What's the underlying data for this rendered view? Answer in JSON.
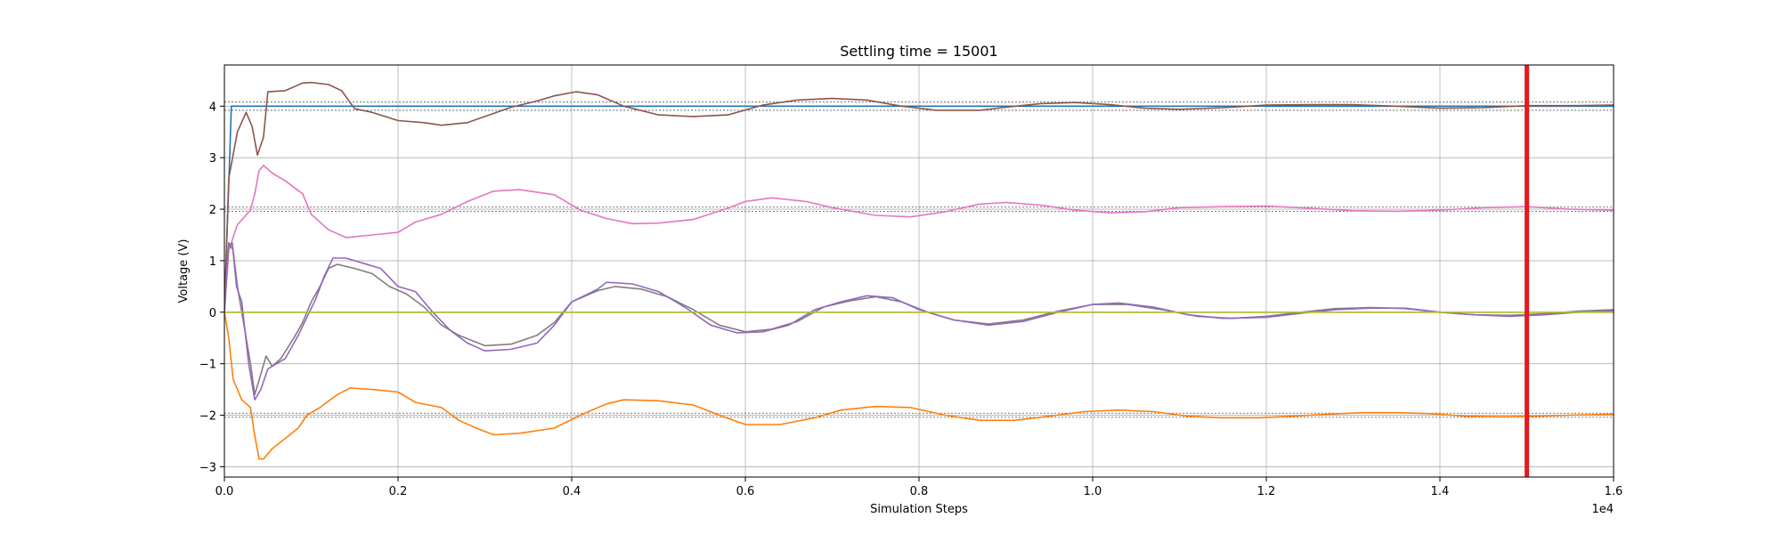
{
  "chart_data": {
    "type": "line",
    "title": "Settling time = 15001",
    "xlabel": "Simulation Steps",
    "ylabel": "Voltage (V)",
    "x_offset_label": "1e4",
    "xlim": [
      0,
      16000
    ],
    "ylim": [
      -3.2,
      4.8
    ],
    "grid": true,
    "x_ticks": [
      0,
      2000,
      4000,
      6000,
      8000,
      10000,
      12000,
      14000,
      16000
    ],
    "x_tick_labels": [
      "0.0",
      "0.2",
      "0.4",
      "0.6",
      "0.8",
      "1.0",
      "1.2",
      "1.4",
      "1.6"
    ],
    "y_ticks": [
      -3,
      -2,
      -1,
      0,
      1,
      2,
      3,
      4
    ],
    "y_tick_labels": [
      "−3",
      "−2",
      "−1",
      "0",
      "1",
      "2",
      "3",
      "4"
    ],
    "settling_marker": {
      "x": 15001,
      "color": "#e8191b"
    },
    "tolerance_bands": [
      {
        "low": 3.92,
        "high": 4.08
      },
      {
        "low": 1.96,
        "high": 2.04
      },
      {
        "low": -2.04,
        "high": -1.96
      }
    ],
    "series": [
      {
        "color": "#1f77b4",
        "points": [
          [
            0,
            0
          ],
          [
            30,
            1.5
          ],
          [
            60,
            3.0
          ],
          [
            80,
            4.0
          ],
          [
            16000,
            4.0
          ]
        ]
      },
      {
        "color": "#8c564b",
        "points": [
          [
            0,
            0
          ],
          [
            50,
            2.6
          ],
          [
            150,
            3.5
          ],
          [
            250,
            3.88
          ],
          [
            320,
            3.6
          ],
          [
            380,
            3.05
          ],
          [
            450,
            3.4
          ],
          [
            500,
            4.28
          ],
          [
            700,
            4.3
          ],
          [
            900,
            4.45
          ],
          [
            1000,
            4.46
          ],
          [
            1200,
            4.42
          ],
          [
            1350,
            4.3
          ],
          [
            1500,
            3.95
          ],
          [
            1700,
            3.88
          ],
          [
            2000,
            3.72
          ],
          [
            2300,
            3.68
          ],
          [
            2500,
            3.63
          ],
          [
            2800,
            3.68
          ],
          [
            3000,
            3.8
          ],
          [
            3300,
            3.98
          ],
          [
            3600,
            4.1
          ],
          [
            3800,
            4.2
          ],
          [
            4050,
            4.28
          ],
          [
            4300,
            4.22
          ],
          [
            4600,
            4.0
          ],
          [
            5000,
            3.83
          ],
          [
            5400,
            3.8
          ],
          [
            5800,
            3.83
          ],
          [
            6200,
            4.02
          ],
          [
            6600,
            4.12
          ],
          [
            7000,
            4.15
          ],
          [
            7400,
            4.12
          ],
          [
            7800,
            4.0
          ],
          [
            8200,
            3.92
          ],
          [
            8700,
            3.92
          ],
          [
            9000,
            3.98
          ],
          [
            9400,
            4.05
          ],
          [
            9800,
            4.07
          ],
          [
            10200,
            4.03
          ],
          [
            10600,
            3.96
          ],
          [
            11000,
            3.94
          ],
          [
            11500,
            3.97
          ],
          [
            12000,
            4.02
          ],
          [
            12500,
            4.03
          ],
          [
            13000,
            4.03
          ],
          [
            13500,
            4.0
          ],
          [
            14000,
            3.96
          ],
          [
            14500,
            3.97
          ],
          [
            15000,
            4.01
          ],
          [
            15500,
            4.01
          ],
          [
            16000,
            4.02
          ]
        ]
      },
      {
        "color": "#e377c2",
        "points": [
          [
            0,
            0
          ],
          [
            50,
            1.2
          ],
          [
            150,
            1.7
          ],
          [
            300,
            1.98
          ],
          [
            350,
            2.3
          ],
          [
            400,
            2.75
          ],
          [
            450,
            2.85
          ],
          [
            550,
            2.7
          ],
          [
            700,
            2.55
          ],
          [
            900,
            2.3
          ],
          [
            1000,
            1.9
          ],
          [
            1200,
            1.6
          ],
          [
            1400,
            1.45
          ],
          [
            1700,
            1.5
          ],
          [
            2000,
            1.55
          ],
          [
            2200,
            1.75
          ],
          [
            2500,
            1.9
          ],
          [
            2800,
            2.15
          ],
          [
            3100,
            2.35
          ],
          [
            3400,
            2.38
          ],
          [
            3800,
            2.28
          ],
          [
            4100,
            1.98
          ],
          [
            4400,
            1.82
          ],
          [
            4700,
            1.72
          ],
          [
            5000,
            1.73
          ],
          [
            5400,
            1.8
          ],
          [
            5800,
            2.02
          ],
          [
            6000,
            2.15
          ],
          [
            6300,
            2.22
          ],
          [
            6700,
            2.15
          ],
          [
            7000,
            2.03
          ],
          [
            7500,
            1.88
          ],
          [
            7900,
            1.85
          ],
          [
            8300,
            1.95
          ],
          [
            8700,
            2.1
          ],
          [
            9000,
            2.13
          ],
          [
            9400,
            2.08
          ],
          [
            9800,
            1.98
          ],
          [
            10200,
            1.93
          ],
          [
            10600,
            1.95
          ],
          [
            11000,
            2.03
          ],
          [
            11500,
            2.05
          ],
          [
            12000,
            2.06
          ],
          [
            12500,
            2.02
          ],
          [
            13000,
            1.97
          ],
          [
            13500,
            1.96
          ],
          [
            14000,
            1.98
          ],
          [
            14500,
            2.03
          ],
          [
            15000,
            2.05
          ],
          [
            15500,
            2.0
          ],
          [
            16000,
            1.98
          ]
        ]
      },
      {
        "color": "#7f7f7f",
        "points": [
          [
            0,
            0
          ],
          [
            50,
            1.35
          ],
          [
            100,
            1.2
          ],
          [
            150,
            0.5
          ],
          [
            200,
            0.0
          ],
          [
            300,
            -1.0
          ],
          [
            350,
            -1.6
          ],
          [
            420,
            -1.2
          ],
          [
            480,
            -0.85
          ],
          [
            550,
            -1.05
          ],
          [
            650,
            -0.9
          ],
          [
            800,
            -0.5
          ],
          [
            900,
            -0.2
          ],
          [
            1000,
            0.2
          ],
          [
            1100,
            0.5
          ],
          [
            1200,
            0.85
          ],
          [
            1300,
            0.93
          ],
          [
            1500,
            0.85
          ],
          [
            1700,
            0.75
          ],
          [
            1900,
            0.5
          ],
          [
            2100,
            0.35
          ],
          [
            2300,
            0.1
          ],
          [
            2500,
            -0.25
          ],
          [
            2700,
            -0.45
          ],
          [
            3000,
            -0.65
          ],
          [
            3300,
            -0.62
          ],
          [
            3600,
            -0.45
          ],
          [
            3800,
            -0.2
          ],
          [
            4000,
            0.2
          ],
          [
            4300,
            0.42
          ],
          [
            4500,
            0.5
          ],
          [
            4800,
            0.45
          ],
          [
            5100,
            0.3
          ],
          [
            5400,
            0.05
          ],
          [
            5700,
            -0.25
          ],
          [
            6000,
            -0.38
          ],
          [
            6300,
            -0.33
          ],
          [
            6600,
            -0.18
          ],
          [
            6900,
            0.1
          ],
          [
            7200,
            0.22
          ],
          [
            7500,
            0.3
          ],
          [
            7800,
            0.2
          ],
          [
            8100,
            0.0
          ],
          [
            8400,
            -0.15
          ],
          [
            8800,
            -0.23
          ],
          [
            9200,
            -0.15
          ],
          [
            9600,
            0.02
          ],
          [
            10000,
            0.15
          ],
          [
            10400,
            0.15
          ],
          [
            10800,
            0.05
          ],
          [
            11200,
            -0.08
          ],
          [
            11600,
            -0.12
          ],
          [
            12000,
            -0.08
          ],
          [
            12400,
            0.0
          ],
          [
            12800,
            0.07
          ],
          [
            13200,
            0.09
          ],
          [
            13600,
            0.07
          ],
          [
            14000,
            0.0
          ],
          [
            14400,
            -0.05
          ],
          [
            14800,
            -0.06
          ],
          [
            15200,
            -0.03
          ],
          [
            15600,
            0.02
          ],
          [
            16000,
            0.05
          ]
        ]
      },
      {
        "color": "#9467bd",
        "points": [
          [
            0,
            0
          ],
          [
            40,
            1.2
          ],
          [
            90,
            1.35
          ],
          [
            140,
            0.5
          ],
          [
            200,
            0.2
          ],
          [
            280,
            -1.0
          ],
          [
            350,
            -1.7
          ],
          [
            420,
            -1.5
          ],
          [
            500,
            -1.1
          ],
          [
            600,
            -1.0
          ],
          [
            700,
            -0.9
          ],
          [
            850,
            -0.45
          ],
          [
            950,
            -0.1
          ],
          [
            1050,
            0.25
          ],
          [
            1150,
            0.7
          ],
          [
            1250,
            1.05
          ],
          [
            1400,
            1.05
          ],
          [
            1600,
            0.95
          ],
          [
            1800,
            0.85
          ],
          [
            2000,
            0.5
          ],
          [
            2200,
            0.4
          ],
          [
            2400,
            0.0
          ],
          [
            2600,
            -0.35
          ],
          [
            2800,
            -0.6
          ],
          [
            3000,
            -0.75
          ],
          [
            3300,
            -0.72
          ],
          [
            3600,
            -0.6
          ],
          [
            3800,
            -0.25
          ],
          [
            4000,
            0.2
          ],
          [
            4300,
            0.45
          ],
          [
            4400,
            0.58
          ],
          [
            4700,
            0.55
          ],
          [
            5000,
            0.4
          ],
          [
            5300,
            0.1
          ],
          [
            5600,
            -0.25
          ],
          [
            5900,
            -0.4
          ],
          [
            6200,
            -0.38
          ],
          [
            6500,
            -0.25
          ],
          [
            6800,
            0.05
          ],
          [
            7100,
            0.2
          ],
          [
            7400,
            0.32
          ],
          [
            7700,
            0.28
          ],
          [
            8000,
            0.05
          ],
          [
            8400,
            -0.15
          ],
          [
            8800,
            -0.25
          ],
          [
            9200,
            -0.18
          ],
          [
            9600,
            0.0
          ],
          [
            10000,
            0.15
          ],
          [
            10300,
            0.18
          ],
          [
            10700,
            0.1
          ],
          [
            11100,
            -0.05
          ],
          [
            11500,
            -0.12
          ],
          [
            12000,
            -0.1
          ],
          [
            12400,
            -0.02
          ],
          [
            12800,
            0.05
          ],
          [
            13200,
            0.08
          ],
          [
            13600,
            0.08
          ],
          [
            14000,
            0.0
          ],
          [
            14400,
            -0.05
          ],
          [
            14800,
            -0.08
          ],
          [
            15200,
            -0.05
          ],
          [
            15600,
            0.0
          ],
          [
            16000,
            0.03
          ]
        ]
      },
      {
        "color": "#ff7f0e",
        "points": [
          [
            0,
            0
          ],
          [
            50,
            -0.5
          ],
          [
            100,
            -1.3
          ],
          [
            200,
            -1.7
          ],
          [
            300,
            -1.85
          ],
          [
            350,
            -2.4
          ],
          [
            400,
            -2.85
          ],
          [
            450,
            -2.85
          ],
          [
            550,
            -2.65
          ],
          [
            700,
            -2.45
          ],
          [
            850,
            -2.25
          ],
          [
            950,
            -2.0
          ],
          [
            1100,
            -1.85
          ],
          [
            1300,
            -1.6
          ],
          [
            1450,
            -1.47
          ],
          [
            1700,
            -1.5
          ],
          [
            2000,
            -1.55
          ],
          [
            2200,
            -1.75
          ],
          [
            2500,
            -1.85
          ],
          [
            2700,
            -2.1
          ],
          [
            2900,
            -2.25
          ],
          [
            3100,
            -2.38
          ],
          [
            3400,
            -2.35
          ],
          [
            3800,
            -2.25
          ],
          [
            4100,
            -2.0
          ],
          [
            4400,
            -1.78
          ],
          [
            4600,
            -1.7
          ],
          [
            5000,
            -1.72
          ],
          [
            5400,
            -1.8
          ],
          [
            5700,
            -2.0
          ],
          [
            6000,
            -2.18
          ],
          [
            6400,
            -2.18
          ],
          [
            6800,
            -2.05
          ],
          [
            7100,
            -1.9
          ],
          [
            7500,
            -1.83
          ],
          [
            7900,
            -1.85
          ],
          [
            8300,
            -2.0
          ],
          [
            8700,
            -2.1
          ],
          [
            9100,
            -2.1
          ],
          [
            9500,
            -2.02
          ],
          [
            9900,
            -1.93
          ],
          [
            10300,
            -1.9
          ],
          [
            10700,
            -1.93
          ],
          [
            11100,
            -2.02
          ],
          [
            11500,
            -2.05
          ],
          [
            11900,
            -2.05
          ],
          [
            12300,
            -2.02
          ],
          [
            12700,
            -1.98
          ],
          [
            13100,
            -1.95
          ],
          [
            13500,
            -1.95
          ],
          [
            13900,
            -1.97
          ],
          [
            14300,
            -2.02
          ],
          [
            14700,
            -2.03
          ],
          [
            15100,
            -2.02
          ],
          [
            15500,
            -2.0
          ],
          [
            16000,
            -1.98
          ]
        ]
      },
      {
        "color": "#17becf",
        "points": [
          [
            0,
            0
          ],
          [
            16000,
            0
          ]
        ]
      },
      {
        "color": "#bcbd22",
        "points": [
          [
            0,
            0
          ],
          [
            16000,
            0
          ]
        ]
      }
    ]
  }
}
